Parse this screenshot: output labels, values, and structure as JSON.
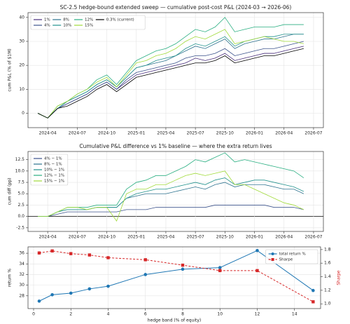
{
  "chart_data": [
    {
      "type": "line",
      "title": "SC-2.5 hedge-bound extended sweep — cumulative post-cost P&L (2024-03 → 2026-06)",
      "ylabel": "cum P&L (% of $1M)",
      "x": [
        "2024-03",
        "2024-04",
        "2024-05",
        "2024-06",
        "2024-07",
        "2024-08",
        "2024-09",
        "2024-10",
        "2024-11",
        "2024-12",
        "2025-01",
        "2025-02",
        "2025-03",
        "2025-04",
        "2025-05",
        "2025-06",
        "2025-07",
        "2025-08",
        "2025-09",
        "2025-10",
        "2025-11",
        "2025-12",
        "2026-01",
        "2026-02",
        "2026-03",
        "2026-04",
        "2026-05",
        "2026-06"
      ],
      "xlim": [
        "2024-02",
        "2026-08"
      ],
      "xticks": [
        "2024-04",
        "2024-07",
        "2024-10",
        "2025-01",
        "2025-04",
        "2025-07",
        "2025-10",
        "2026-01",
        "2026-04",
        "2026-07"
      ],
      "ylim": [
        -6,
        42
      ],
      "yticks": [
        0,
        10,
        20,
        30,
        40
      ],
      "grid": true,
      "legend": "upper left",
      "legend_columns": 4,
      "series": [
        {
          "name": "1%",
          "color": "#472d7b",
          "values": [
            0,
            -2,
            2,
            4,
            6,
            8,
            11,
            13,
            10,
            13,
            16,
            17,
            18,
            19,
            20,
            21,
            23,
            22,
            23,
            25,
            22,
            23,
            24,
            25,
            25,
            26,
            27,
            28
          ]
        },
        {
          "name": "4%",
          "color": "#3b528b",
          "values": [
            0,
            -2,
            2,
            4,
            6,
            8,
            11,
            13,
            10,
            14,
            17,
            18,
            19,
            20,
            21,
            23,
            24,
            24,
            25,
            27,
            24,
            25,
            26,
            27,
            27,
            28,
            29,
            30
          ]
        },
        {
          "name": "8%",
          "color": "#2c728e",
          "values": [
            0,
            -2,
            2,
            5,
            7,
            9,
            12,
            14,
            11,
            15,
            19,
            20,
            21,
            22,
            24,
            26,
            28,
            27,
            29,
            31,
            27,
            29,
            30,
            31,
            31,
            32,
            33,
            33
          ]
        },
        {
          "name": "10%",
          "color": "#21918c",
          "values": [
            0,
            -2,
            2,
            5,
            7,
            9,
            12,
            14,
            11,
            15,
            19,
            20,
            22,
            23,
            24,
            27,
            29,
            28,
            30,
            32,
            28,
            30,
            31,
            32,
            32,
            33,
            33,
            33
          ]
        },
        {
          "name": "12%",
          "color": "#28ae80",
          "values": [
            0,
            -2,
            3,
            5,
            8,
            10,
            14,
            16,
            12,
            17,
            22,
            24,
            26,
            27,
            29,
            32,
            35,
            34,
            36,
            40,
            34,
            35,
            36,
            36,
            36,
            37,
            37,
            37
          ]
        },
        {
          "name": "15%",
          "color": "#a0da39",
          "values": [
            0,
            -2,
            3,
            5,
            8,
            10,
            13,
            15,
            11,
            16,
            21,
            22,
            24,
            25,
            27,
            30,
            32,
            31,
            33,
            35,
            29,
            30,
            31,
            32,
            31,
            30,
            30,
            29
          ]
        },
        {
          "name": "0.3% (current)",
          "color": "#000000",
          "values": [
            0,
            -2,
            2,
            3,
            5,
            7,
            10,
            12,
            9,
            12,
            15,
            16,
            17,
            18,
            19,
            20,
            21,
            21,
            22,
            24,
            21,
            22,
            23,
            24,
            24,
            25,
            26,
            27
          ]
        }
      ]
    },
    {
      "type": "line",
      "title": "Cumulative P&L difference vs 1% baseline — where the extra return lives",
      "ylabel": "cum diff (pp)",
      "x": [
        "2024-03",
        "2024-04",
        "2024-05",
        "2024-06",
        "2024-07",
        "2024-08",
        "2024-09",
        "2024-10",
        "2024-11",
        "2024-12",
        "2025-01",
        "2025-02",
        "2025-03",
        "2025-04",
        "2025-05",
        "2025-06",
        "2025-07",
        "2025-08",
        "2025-09",
        "2025-10",
        "2025-11",
        "2025-12",
        "2026-01",
        "2026-02",
        "2026-03",
        "2026-04",
        "2026-05",
        "2026-06"
      ],
      "xlim": [
        "2024-02",
        "2026-08"
      ],
      "xticks": [
        "2024-04",
        "2024-07",
        "2024-10",
        "2025-01",
        "2025-04",
        "2025-07",
        "2025-10",
        "2026-01",
        "2026-04",
        "2026-07"
      ],
      "ylim": [
        -3.3,
        14.3
      ],
      "yticks": [
        -2.5,
        {
          "value": 0,
          "label": "0.0"
        },
        2.5,
        {
          "value": 5,
          "label": "5.0"
        },
        7.5,
        {
          "value": 10,
          "label": "10.0"
        },
        12.5
      ],
      "grid": true,
      "zero_line": true,
      "legend": "upper left",
      "legend_columns": 1,
      "series": [
        {
          "name": "4% − 1%",
          "color": "#3b528b",
          "values": [
            0,
            0,
            0.5,
            1,
            1,
            1,
            1,
            1,
            1,
            1.5,
            1.5,
            1.5,
            2,
            2,
            2,
            2,
            2,
            2,
            2.5,
            2.5,
            2.5,
            2.5,
            2.5,
            2.5,
            2,
            2,
            2,
            1.5
          ]
        },
        {
          "name": "8% − 1%",
          "color": "#2c728e",
          "values": [
            0,
            0,
            1,
            1.5,
            1.5,
            1.5,
            2,
            2,
            2,
            4,
            4.5,
            5,
            5,
            5,
            5.5,
            6,
            6.5,
            6,
            7,
            7.5,
            6.5,
            7,
            7,
            7,
            6.5,
            6,
            6,
            5
          ]
        },
        {
          "name": "10% − 1%",
          "color": "#21918c",
          "values": [
            0,
            0,
            1,
            1.5,
            1.5,
            1.5,
            2,
            2,
            2,
            4,
            5,
            5.5,
            6,
            6,
            6.5,
            7,
            7.5,
            7,
            8,
            8.5,
            7,
            7.5,
            8,
            8,
            7.5,
            7,
            6.5,
            5.5
          ]
        },
        {
          "name": "12% − 1%",
          "color": "#28ae80",
          "values": [
            0,
            0,
            1,
            2,
            2,
            2,
            2.5,
            2.5,
            2.5,
            6,
            7.5,
            8,
            9,
            9,
            10,
            11,
            12.5,
            12,
            13,
            14,
            12,
            12.5,
            12,
            11.5,
            11,
            10.5,
            10,
            8.5
          ]
        },
        {
          "name": "15% − 1%",
          "color": "#a0da39",
          "values": [
            0,
            0,
            1,
            2,
            2,
            1.5,
            2,
            2,
            -1,
            5,
            6,
            6,
            7,
            7,
            8,
            9,
            9.5,
            9,
            9.5,
            10,
            7,
            7,
            6,
            5,
            4,
            3,
            2.5,
            1.5
          ]
        }
      ]
    },
    {
      "type": "line",
      "xlabel": "hedge band (% of equity)",
      "ylabel": "return %",
      "y2label": "Sharpe",
      "x": [
        0.3,
        1,
        2,
        3,
        4,
        6,
        8,
        10,
        12,
        15
      ],
      "xlim": [
        -0.3,
        15.4
      ],
      "xticks": [
        0,
        2,
        4,
        6,
        8,
        10,
        12,
        14
      ],
      "ylim": [
        25.6,
        37.2
      ],
      "yticks": [
        28,
        30,
        32,
        34,
        36
      ],
      "y2lim": [
        0.93,
        1.84
      ],
      "y2ticks": [
        {
          "value": 1,
          "label": "1.0"
        },
        1.2,
        1.4,
        1.6,
        1.8
      ],
      "grid": true,
      "legend": "upper right",
      "legend_columns": 1,
      "series": [
        {
          "name": "total return %",
          "color": "#1f77b4",
          "marker": "circle",
          "linestyle": "solid",
          "values": [
            27,
            28.2,
            28.5,
            29.3,
            29.8,
            32,
            33,
            33.3,
            36.5,
            29
          ]
        },
        {
          "name": "Sharpe",
          "color": "#d62728",
          "marker": "square",
          "linestyle": "dashed",
          "axis": "y2",
          "values": [
            1.75,
            1.78,
            1.74,
            1.72,
            1.68,
            1.65,
            1.57,
            1.49,
            1.49,
            1.03
          ]
        }
      ]
    }
  ]
}
